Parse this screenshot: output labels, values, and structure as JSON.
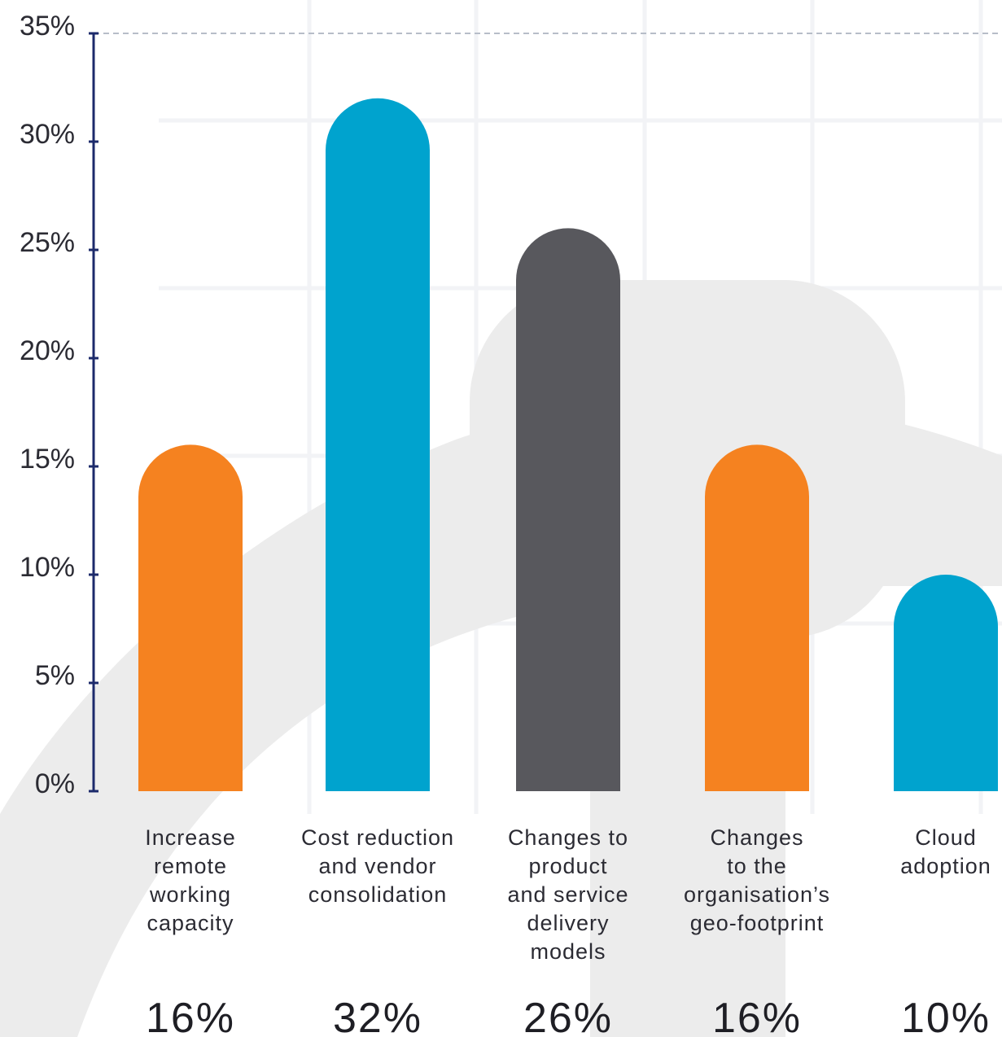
{
  "colors": {
    "orange": "#F58220",
    "blue": "#00A3CE",
    "dark": "#58585D",
    "axis": "#1C2A6B",
    "grid_dashed": "#B7BDC8",
    "watermark": "#ECECEC",
    "background_grid": "#F2F3F6",
    "text": "#2B2B33"
  },
  "chart_data": {
    "type": "bar",
    "categories": [
      [
        "Increase",
        "remote",
        "working",
        "capacity"
      ],
      [
        "Cost reduction",
        "and vendor",
        "consolidation"
      ],
      [
        "Changes to",
        "product",
        "and service",
        "delivery",
        "models"
      ],
      [
        "Changes",
        "to the",
        "organisation’s",
        "geo-footprint"
      ],
      [
        "Cloud",
        "adoption"
      ]
    ],
    "values": [
      16,
      32,
      26,
      16,
      10
    ],
    "value_labels": [
      "16%",
      "32%",
      "26%",
      "16%",
      "10%"
    ],
    "bar_colors": [
      "orange",
      "blue",
      "dark",
      "orange",
      "blue"
    ],
    "y_ticks": [
      0,
      5,
      10,
      15,
      20,
      25,
      30,
      35
    ],
    "y_tick_labels": [
      "0%",
      "5%",
      "10%",
      "15%",
      "20%",
      "25%",
      "30%",
      "35%"
    ],
    "ylim": [
      0,
      35
    ],
    "title": "",
    "xlabel": "",
    "ylabel": "",
    "grid": "dashed line at top tick only",
    "legend": "none"
  }
}
